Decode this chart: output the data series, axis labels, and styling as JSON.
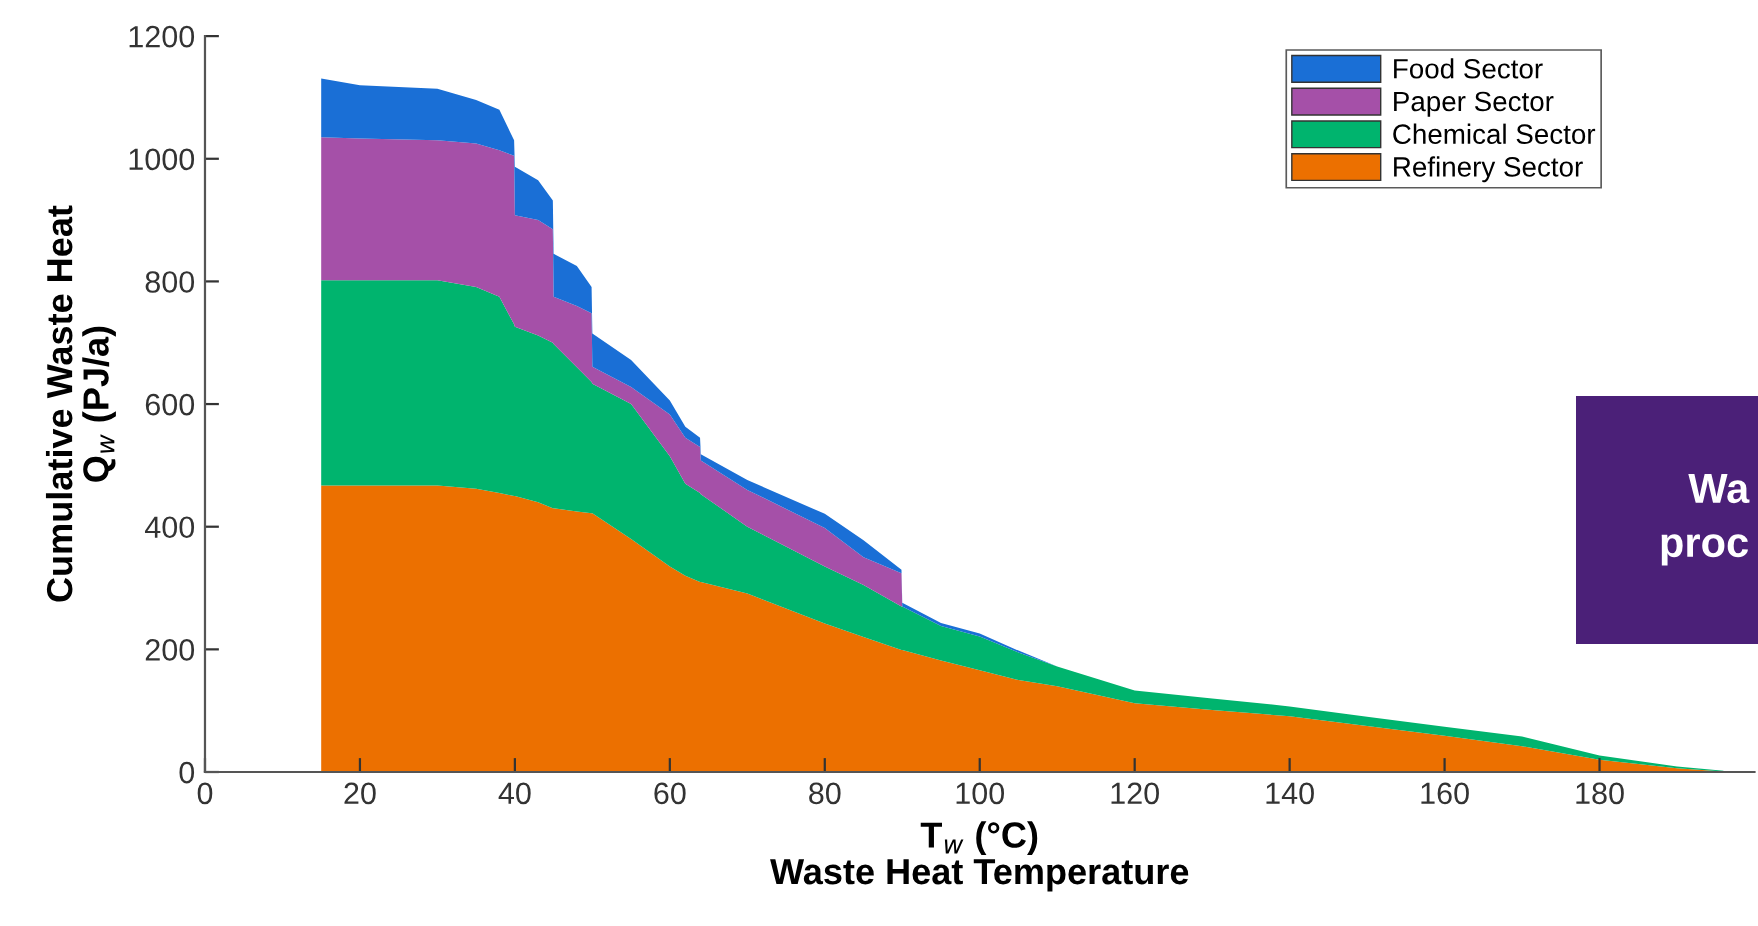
{
  "chart_data": {
    "type": "area",
    "stacked": true,
    "xlabel": "T$_{w}$ (°C)\nWaste Heat Temperature",
    "ylabel": "Cumulative Waste Heat\nQ$_{w}$ (PJ/a)",
    "x": [
      15,
      20,
      30,
      35,
      38,
      39.9,
      40,
      43,
      44.9,
      45,
      48,
      49.9,
      50,
      55,
      60,
      62,
      63.9,
      64,
      70,
      80,
      85,
      89.9,
      90,
      95,
      100,
      105,
      110,
      120,
      130,
      140,
      150,
      160,
      170,
      180,
      190,
      196
    ],
    "series": [
      {
        "name": "Refinery Sector",
        "color": "#ec7000",
        "values": [
          467,
          467,
          467,
          462,
          455,
          450,
          450,
          440,
          430,
          430,
          425,
          422,
          422,
          380,
          335,
          320,
          310,
          310,
          291,
          242,
          220,
          199,
          199,
          182,
          166,
          150,
          140,
          112,
          101,
          91,
          75,
          59,
          42,
          20,
          6,
          1
        ]
      },
      {
        "name": "Chemical Sector",
        "color": "#00b46e",
        "values": [
          335,
          335,
          335,
          329,
          320,
          280,
          276,
          272,
          270,
          268,
          235,
          214,
          211,
          220,
          180,
          150,
          145,
          143,
          109,
          93,
          85,
          71,
          71,
          56,
          55,
          45,
          32,
          21,
          19,
          16,
          15,
          15,
          16,
          7,
          3,
          1
        ]
      },
      {
        "name": "Paper Sector",
        "color": "#a550a8",
        "values": [
          233,
          231,
          228,
          234,
          239,
          275,
          182,
          188,
          185,
          77,
          100,
          112,
          28,
          28,
          68,
          75,
          75,
          55,
          60,
          63,
          45,
          54,
          0,
          0,
          0,
          0,
          0,
          0,
          0,
          0,
          0,
          0,
          0,
          0,
          0,
          0
        ]
      },
      {
        "name": "Food Sector",
        "color": "#1a6fd6",
        "values": [
          96,
          87,
          84,
          71,
          66,
          25,
          79,
          65,
          47,
          70,
          65,
          43,
          54,
          44,
          23,
          18,
          15,
          10,
          16,
          23,
          28,
          6,
          6,
          5,
          5,
          3,
          0,
          0,
          0,
          0,
          0,
          0,
          0,
          0,
          0,
          0
        ]
      }
    ],
    "xlim": [
      0,
      200
    ],
    "xticks": [
      0,
      20,
      40,
      60,
      80,
      100,
      120,
      140,
      160,
      180
    ],
    "ylim": [
      0,
      1200
    ],
    "yticks": [
      0,
      200,
      400,
      600,
      800,
      1000,
      1200
    ],
    "legend": "top right",
    "grid": false,
    "annotations": [
      "Wa",
      "proc"
    ]
  }
}
